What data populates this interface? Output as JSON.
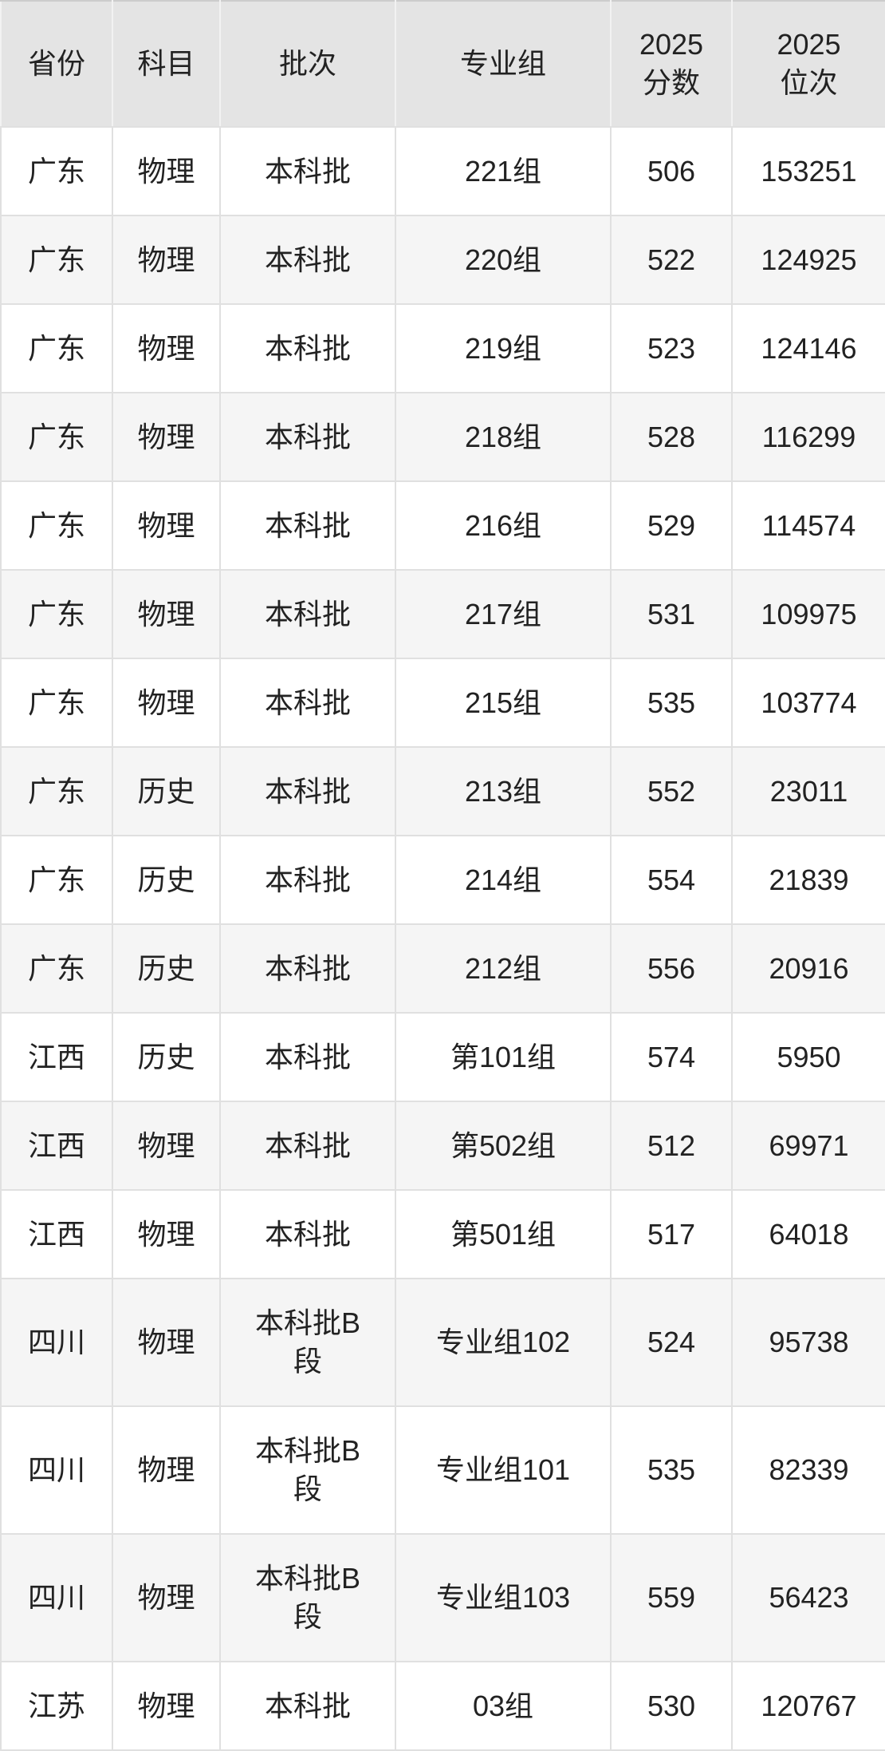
{
  "table": {
    "columns": [
      {
        "key": "province",
        "label": "省份"
      },
      {
        "key": "subject",
        "label": "科目"
      },
      {
        "key": "batch",
        "label": "批次"
      },
      {
        "key": "group",
        "label": "专业组"
      },
      {
        "key": "score2025",
        "label": "2025\n分数"
      },
      {
        "key": "rank2025",
        "label": "2025\n位次"
      }
    ],
    "rows": [
      {
        "province": "广东",
        "subject": "物理",
        "batch": "本科批",
        "group": "221组",
        "score2025": "506",
        "rank2025": "153251"
      },
      {
        "province": "广东",
        "subject": "物理",
        "batch": "本科批",
        "group": "220组",
        "score2025": "522",
        "rank2025": "124925"
      },
      {
        "province": "广东",
        "subject": "物理",
        "batch": "本科批",
        "group": "219组",
        "score2025": "523",
        "rank2025": "124146"
      },
      {
        "province": "广东",
        "subject": "物理",
        "batch": "本科批",
        "group": "218组",
        "score2025": "528",
        "rank2025": "116299"
      },
      {
        "province": "广东",
        "subject": "物理",
        "batch": "本科批",
        "group": "216组",
        "score2025": "529",
        "rank2025": "114574"
      },
      {
        "province": "广东",
        "subject": "物理",
        "batch": "本科批",
        "group": "217组",
        "score2025": "531",
        "rank2025": "109975"
      },
      {
        "province": "广东",
        "subject": "物理",
        "batch": "本科批",
        "group": "215组",
        "score2025": "535",
        "rank2025": "103774"
      },
      {
        "province": "广东",
        "subject": "历史",
        "batch": "本科批",
        "group": "213组",
        "score2025": "552",
        "rank2025": "23011"
      },
      {
        "province": "广东",
        "subject": "历史",
        "batch": "本科批",
        "group": "214组",
        "score2025": "554",
        "rank2025": "21839"
      },
      {
        "province": "广东",
        "subject": "历史",
        "batch": "本科批",
        "group": "212组",
        "score2025": "556",
        "rank2025": "20916"
      },
      {
        "province": "江西",
        "subject": "历史",
        "batch": "本科批",
        "group": "第101组",
        "score2025": "574",
        "rank2025": "5950"
      },
      {
        "province": "江西",
        "subject": "物理",
        "batch": "本科批",
        "group": "第502组",
        "score2025": "512",
        "rank2025": "69971"
      },
      {
        "province": "江西",
        "subject": "物理",
        "batch": "本科批",
        "group": "第501组",
        "score2025": "517",
        "rank2025": "64018"
      },
      {
        "province": "四川",
        "subject": "物理",
        "batch": "本科批B\n段",
        "group": "专业组102",
        "score2025": "524",
        "rank2025": "95738"
      },
      {
        "province": "四川",
        "subject": "物理",
        "batch": "本科批B\n段",
        "group": "专业组101",
        "score2025": "535",
        "rank2025": "82339"
      },
      {
        "province": "四川",
        "subject": "物理",
        "batch": "本科批B\n段",
        "group": "专业组103",
        "score2025": "559",
        "rank2025": "56423"
      },
      {
        "province": "江苏",
        "subject": "物理",
        "batch": "本科批",
        "group": "03组",
        "score2025": "530",
        "rank2025": "120767"
      }
    ]
  },
  "colors": {
    "header_bg": "#e4e4e4",
    "stripe_bg": "#f5f5f5",
    "row_bg": "#ffffff",
    "grid_line": "#e0e0e0",
    "header_grid_line": "#f2f2f2",
    "outer_border": "#cccccc",
    "text": "#222222"
  },
  "chart_data": {
    "type": "table",
    "columns": [
      "省份",
      "科目",
      "批次",
      "专业组",
      "2025分数",
      "2025位次"
    ],
    "rows": [
      [
        "广东",
        "物理",
        "本科批",
        "221组",
        506,
        153251
      ],
      [
        "广东",
        "物理",
        "本科批",
        "220组",
        522,
        124925
      ],
      [
        "广东",
        "物理",
        "本科批",
        "219组",
        523,
        124146
      ],
      [
        "广东",
        "物理",
        "本科批",
        "218组",
        528,
        116299
      ],
      [
        "广东",
        "物理",
        "本科批",
        "216组",
        529,
        114574
      ],
      [
        "广东",
        "物理",
        "本科批",
        "217组",
        531,
        109975
      ],
      [
        "广东",
        "物理",
        "本科批",
        "215组",
        535,
        103774
      ],
      [
        "广东",
        "历史",
        "本科批",
        "213组",
        552,
        23011
      ],
      [
        "广东",
        "历史",
        "本科批",
        "214组",
        554,
        21839
      ],
      [
        "广东",
        "历史",
        "本科批",
        "212组",
        556,
        20916
      ],
      [
        "江西",
        "历史",
        "本科批",
        "第101组",
        574,
        5950
      ],
      [
        "江西",
        "物理",
        "本科批",
        "第502组",
        512,
        69971
      ],
      [
        "江西",
        "物理",
        "本科批",
        "第501组",
        517,
        64018
      ],
      [
        "四川",
        "物理",
        "本科批B段",
        "专业组102",
        524,
        95738
      ],
      [
        "四川",
        "物理",
        "本科批B段",
        "专业组101",
        535,
        82339
      ],
      [
        "四川",
        "物理",
        "本科批B段",
        "专业组103",
        559,
        56423
      ],
      [
        "江苏",
        "物理",
        "本科批",
        "03组",
        530,
        120767
      ]
    ]
  }
}
